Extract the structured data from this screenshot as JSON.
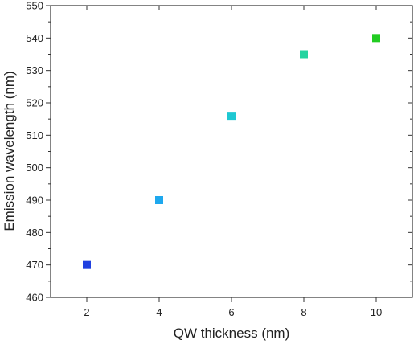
{
  "chart_data": {
    "type": "scatter",
    "title": "",
    "xlabel": "QW thickness (nm)",
    "ylabel": "Emission wavelength (nm)",
    "xlim": [
      1,
      11
    ],
    "ylim": [
      460,
      550
    ],
    "x_ticks": [
      2,
      4,
      6,
      8,
      10
    ],
    "y_ticks": [
      460,
      470,
      480,
      490,
      500,
      510,
      520,
      530,
      540,
      550
    ],
    "grid": false,
    "legend": "none",
    "points": [
      {
        "x": 2,
        "y": 470,
        "color": "#2040e0"
      },
      {
        "x": 4,
        "y": 490,
        "color": "#1ea8ee"
      },
      {
        "x": 6,
        "y": 516,
        "color": "#1ec8d2"
      },
      {
        "x": 8,
        "y": 535,
        "color": "#24d4a0"
      },
      {
        "x": 10,
        "y": 540,
        "color": "#22cc22"
      }
    ]
  }
}
